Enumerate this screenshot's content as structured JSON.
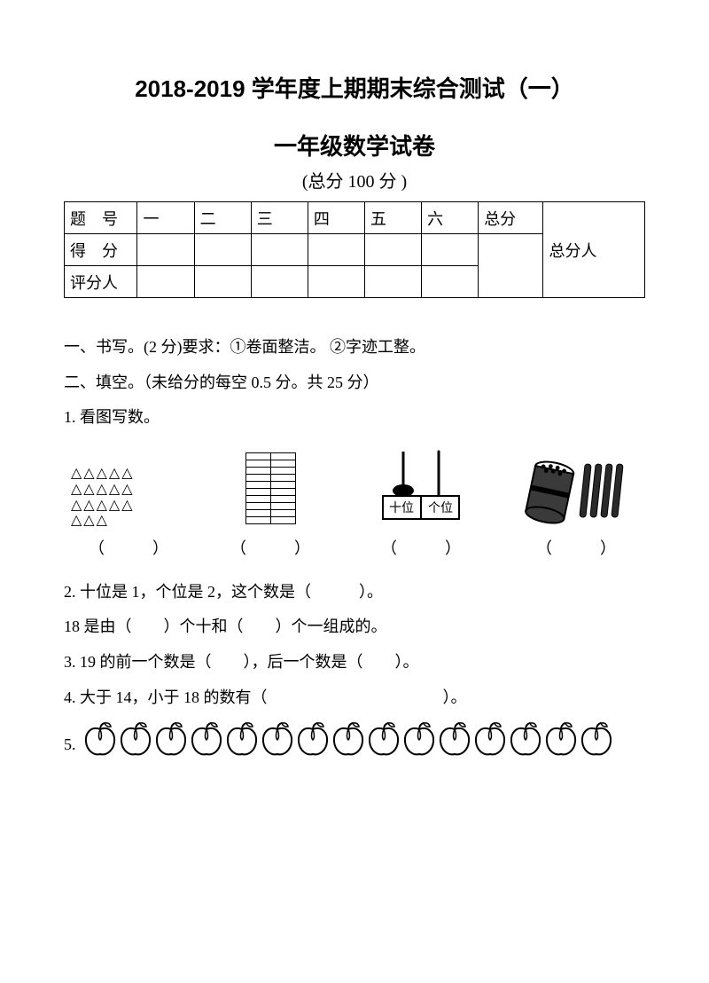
{
  "title": "2018-2019 学年度上期期末综合测试（一）",
  "subtitle": "一年级数学试卷",
  "total_label": "(总分 100 分 )",
  "score_table": {
    "row1": [
      "题　号",
      "一",
      "二",
      "三",
      "四",
      "五",
      "六",
      "总分",
      "总分人"
    ],
    "row2_label": "得　分",
    "row3_label": "评分人"
  },
  "section1": "一、书写。(2 分)要求：①卷面整洁。 ②字迹工整。",
  "section2": "二、填空。（未给分的每空 0.5 分。共 25 分）",
  "q1_label": "1. 看图写数。",
  "q1_images": {
    "triangles": {
      "rows": [
        "△△△△△",
        "△△△△△",
        "△△△△△",
        "△△△"
      ],
      "count": 18
    },
    "grid": {
      "rows": 10,
      "cols": 2
    },
    "abacus": {
      "left_label": "十位",
      "right_label": "个位"
    },
    "sticks": {
      "bundles": 1,
      "loose": 4
    }
  },
  "q1_blanks": [
    "（　　　）",
    "（　　　）",
    "（　　　）",
    "（　　　）"
  ],
  "q2a": "2. 十位是 1，个位是 2，这个数是（　　　）。",
  "q2b": "18 是由（　　）个十和（　　）个一组成的。",
  "q3": "3. 19 的前一个数是（　　），后一个数是（　　）。",
  "q4": "4. 大于 14，小于 18 的数有（　　　　　　　　　　　）。",
  "q5_label": "5.",
  "q5_apples_count": 15,
  "colors": {
    "text": "#000000",
    "bg": "#ffffff",
    "border": "#000000"
  }
}
